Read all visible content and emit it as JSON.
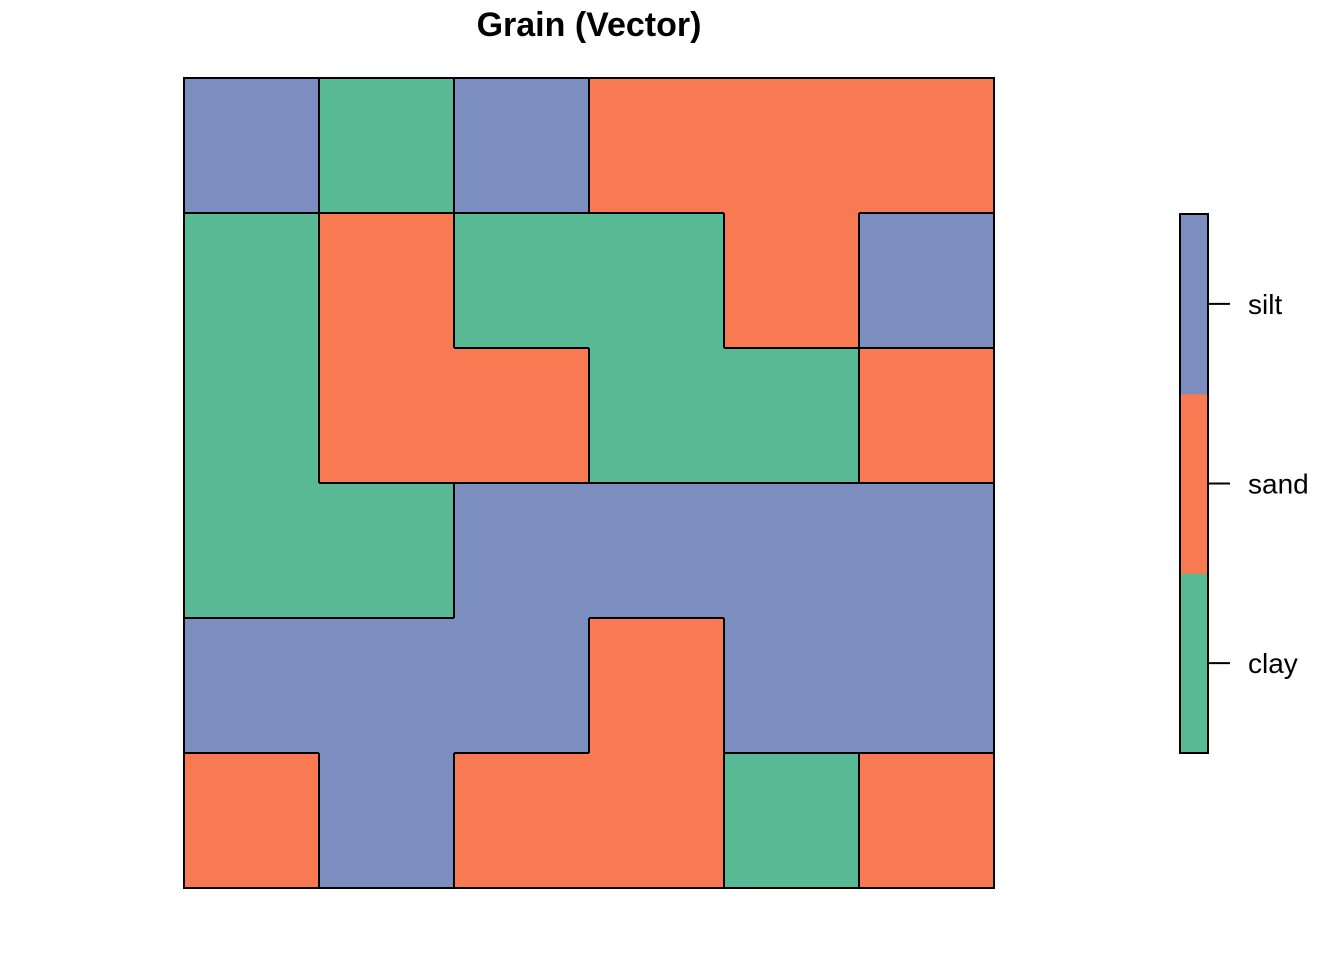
{
  "chart_data": {
    "type": "heatmap",
    "title": "Grain (Vector)",
    "xlabel": "",
    "ylabel": "",
    "grid": false,
    "legend_placement": "right",
    "categories": [
      "clay",
      "sand",
      "silt"
    ],
    "colors": {
      "clay": "#58B995",
      "sand": "#F77A52",
      "silt": "#7B8EBF",
      "outline": "#000000"
    },
    "rows": 6,
    "cols": 6,
    "cells": [
      [
        "silt",
        "clay",
        "silt",
        "sand",
        "sand",
        "sand"
      ],
      [
        "clay",
        "sand",
        "clay",
        "clay",
        "sand",
        "silt"
      ],
      [
        "clay",
        "sand",
        "sand",
        "clay",
        "clay",
        "sand"
      ],
      [
        "clay",
        "clay",
        "silt",
        "silt",
        "silt",
        "silt"
      ],
      [
        "silt",
        "silt",
        "silt",
        "sand",
        "silt",
        "silt"
      ],
      [
        "sand",
        "silt",
        "sand",
        "sand",
        "clay",
        "sand"
      ]
    ],
    "legend": {
      "entries": [
        "clay",
        "sand",
        "silt"
      ]
    }
  }
}
